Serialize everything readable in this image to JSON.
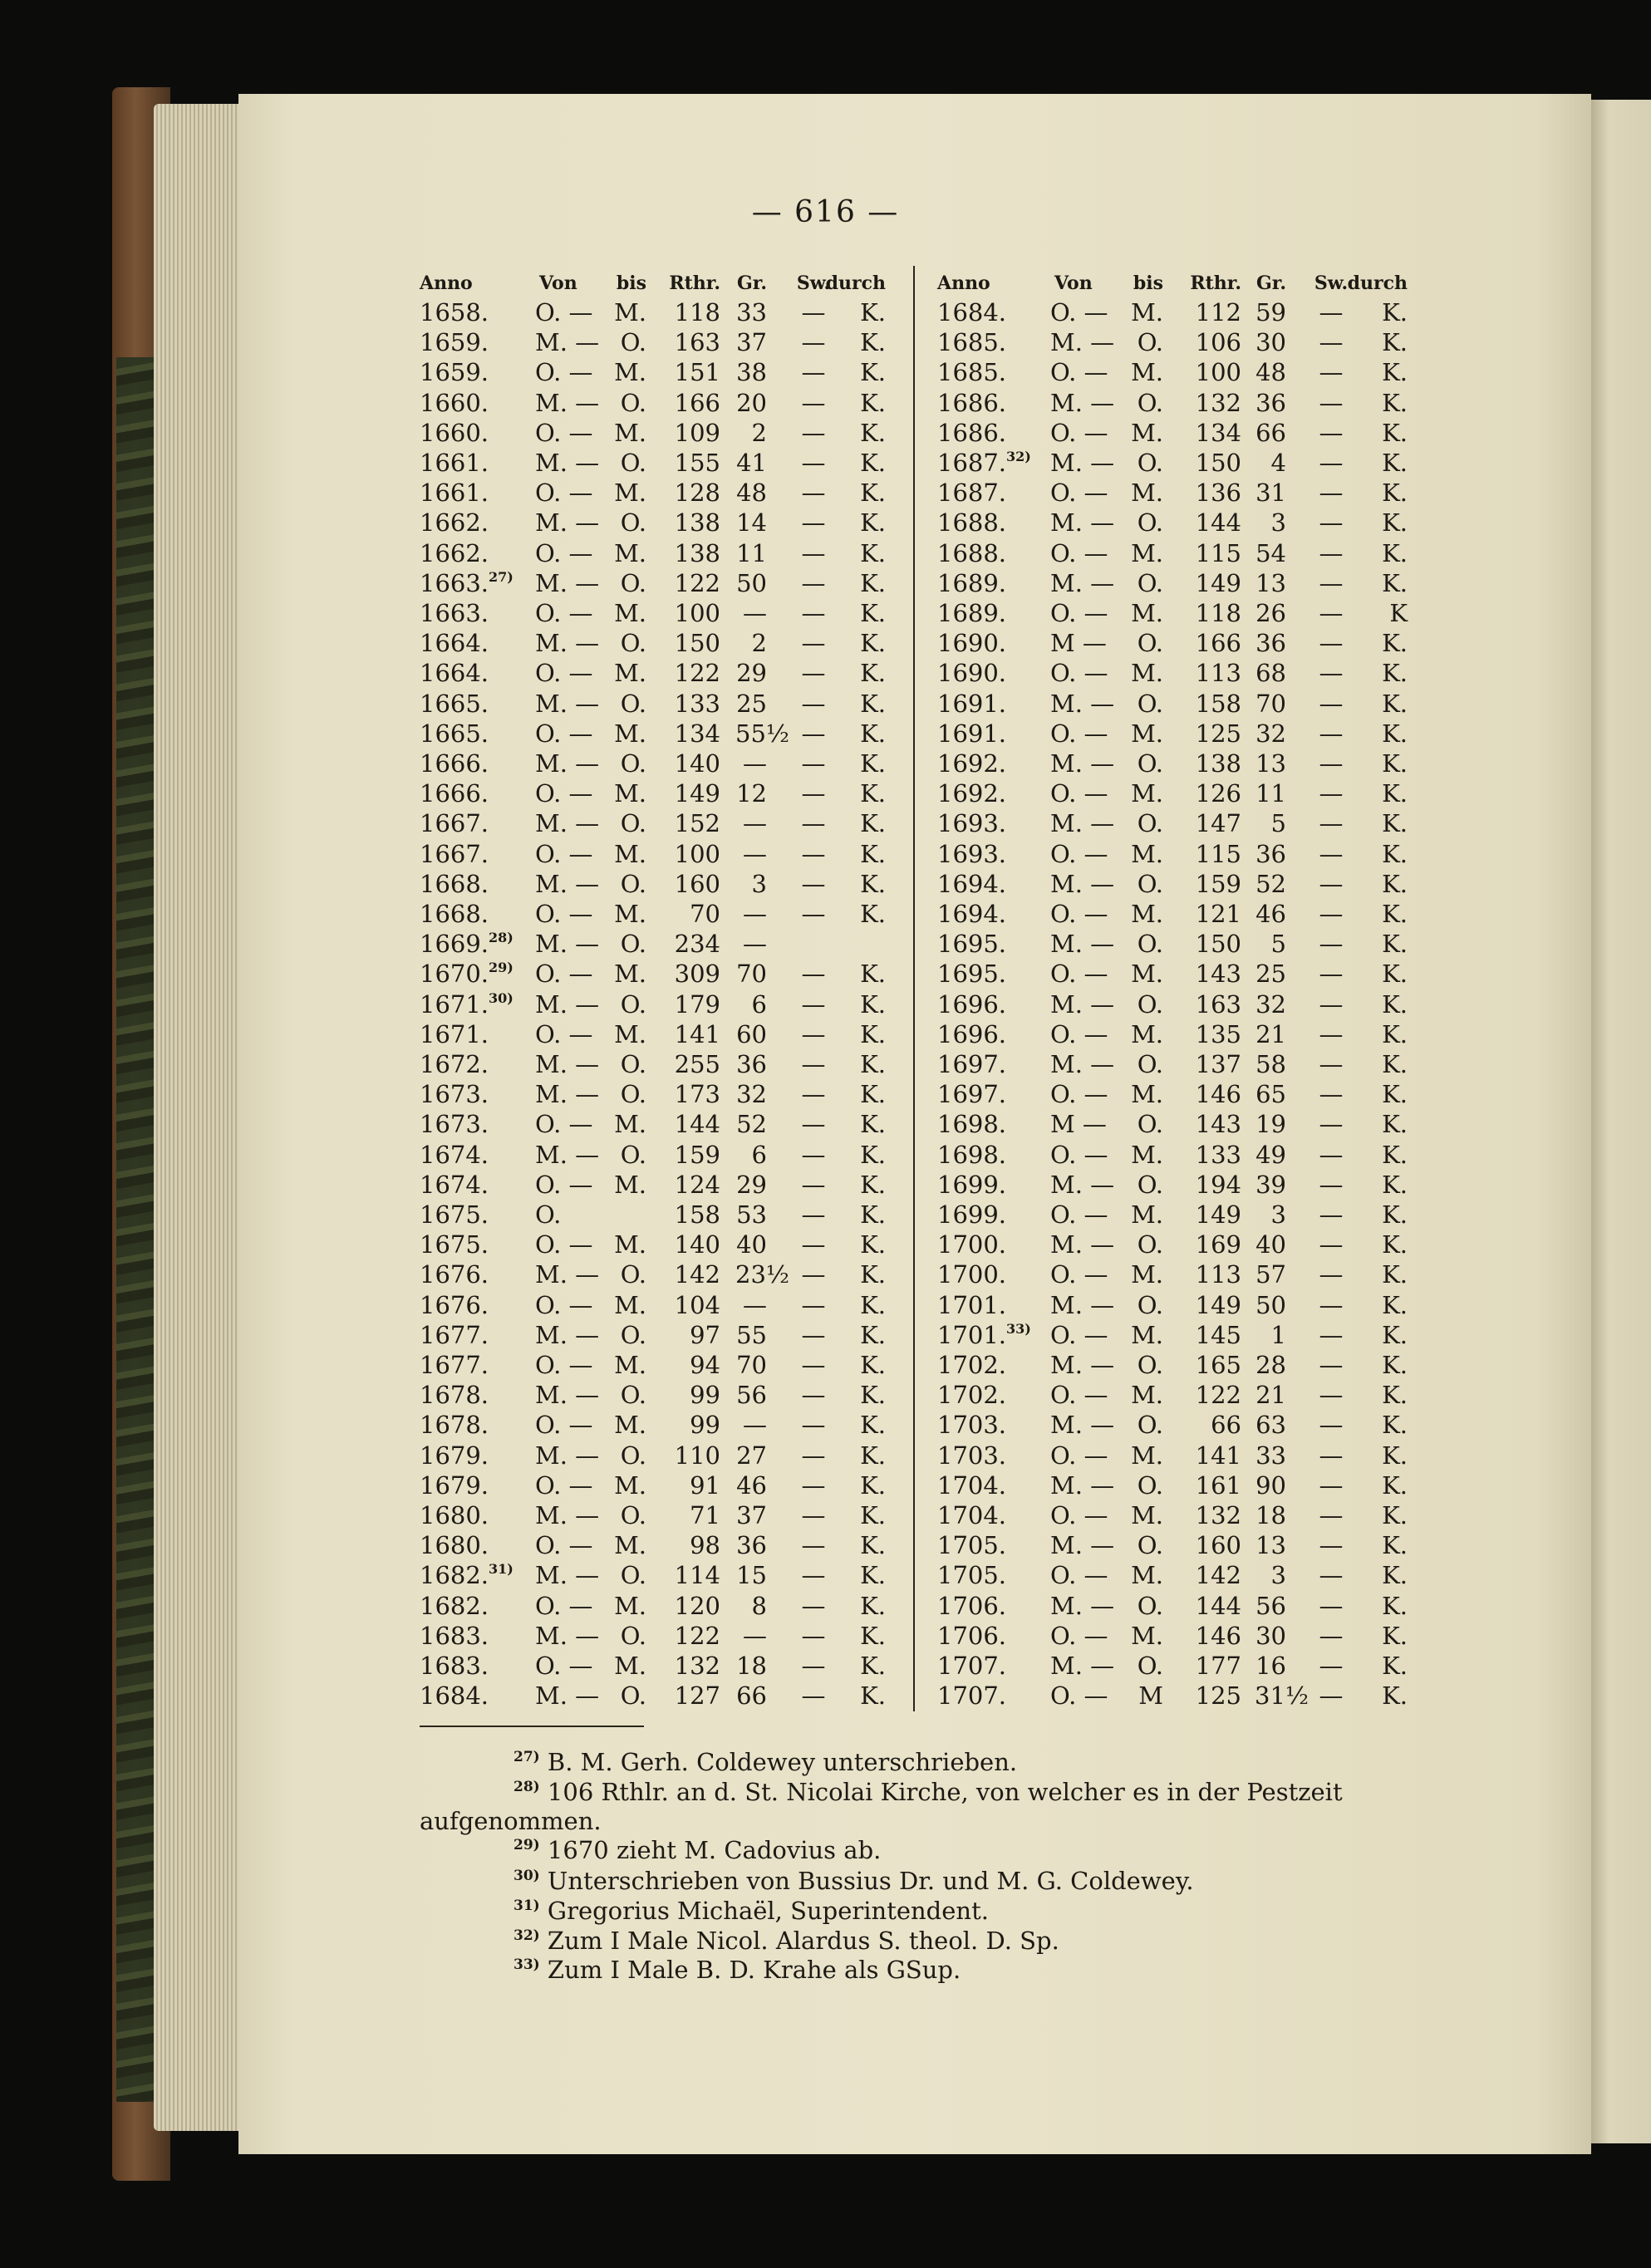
{
  "page_number": "— 616 —",
  "headers": {
    "anno": "Anno",
    "von": "Von",
    "bis": "bis",
    "rthr": "Rthr.",
    "gr": "Gr.",
    "sw": "Sw.",
    "durch": "durch"
  },
  "left_rows": [
    [
      "1658.",
      "",
      "O. —",
      "M.",
      "118",
      "33",
      "—",
      "K."
    ],
    [
      "1659.",
      "",
      "M. —",
      "O.",
      "163",
      "37",
      "—",
      "K."
    ],
    [
      "1659.",
      "",
      "O. —",
      "M.",
      "151",
      "38",
      "—",
      "K."
    ],
    [
      "1660.",
      "",
      "M. —",
      "O.",
      "166",
      "20",
      "—",
      "K."
    ],
    [
      "1660.",
      "",
      "O. —",
      "M.",
      "109",
      "2",
      "—",
      "K."
    ],
    [
      "1661.",
      "",
      "M. —",
      "O.",
      "155",
      "41",
      "—",
      "K."
    ],
    [
      "1661.",
      "",
      "O. —",
      "M.",
      "128",
      "48",
      "—",
      "K."
    ],
    [
      "1662.",
      "",
      "M. —",
      "O.",
      "138",
      "14",
      "—",
      "K."
    ],
    [
      "1662.",
      "",
      "O. —",
      "M.",
      "138",
      "11",
      "—",
      "K."
    ],
    [
      "1663.",
      "27)",
      "M. —",
      "O.",
      "122",
      "50",
      "—",
      "K."
    ],
    [
      "1663.",
      "",
      "O. —",
      "M.",
      "100",
      "—",
      "—",
      "K."
    ],
    [
      "1664.",
      "",
      "M. —",
      "O.",
      "150",
      "2",
      "—",
      "K."
    ],
    [
      "1664.",
      "",
      "O. —",
      "M.",
      "122",
      "29",
      "—",
      "K."
    ],
    [
      "1665.",
      "",
      "M. —",
      "O.",
      "133",
      "25",
      "—",
      "K."
    ],
    [
      "1665.",
      "",
      "O. —",
      "M.",
      "134",
      "55½",
      "—",
      "K."
    ],
    [
      "1666.",
      "",
      "M. —",
      "O.",
      "140",
      "—",
      "—",
      "K."
    ],
    [
      "1666.",
      "",
      "O. —",
      "M.",
      "149",
      "12",
      "—",
      "K."
    ],
    [
      "1667.",
      "",
      "M. —",
      "O.",
      "152",
      "—",
      "—",
      "K."
    ],
    [
      "1667.",
      "",
      "O. —",
      "M.",
      "100",
      "—",
      "—",
      "K."
    ],
    [
      "1668.",
      "",
      "M. —",
      "O.",
      "160",
      "3",
      "—",
      "K."
    ],
    [
      "1668.",
      "",
      "O. —",
      "M.",
      "70",
      "—",
      "—",
      "K."
    ],
    [
      "1669.",
      "28)",
      "M. —",
      "O.",
      "234",
      "—",
      "",
      ""
    ],
    [
      "1670.",
      "29)",
      "O. —",
      "M.",
      "309",
      "70",
      "—",
      "K."
    ],
    [
      "1671.",
      "30)",
      "M. —",
      "O.",
      "179",
      "6",
      "—",
      "K."
    ],
    [
      "1671.",
      "",
      "O. —",
      "M.",
      "141",
      "60",
      "—",
      "K."
    ],
    [
      "1672.",
      "",
      "M. —",
      "O.",
      "255",
      "36",
      "—",
      "K."
    ],
    [
      "1673.",
      "",
      "M. —",
      "O.",
      "173",
      "32",
      "—",
      "K."
    ],
    [
      "1673.",
      "",
      "O. —",
      "M.",
      "144",
      "52",
      "—",
      "K."
    ],
    [
      "1674.",
      "",
      "M. —",
      "O.",
      "159",
      "6",
      "—",
      "K."
    ],
    [
      "1674.",
      "",
      "O. —",
      "M.",
      "124",
      "29",
      "—",
      "K."
    ],
    [
      "1675.",
      "",
      "O.",
      "",
      "158",
      "53",
      "—",
      "K."
    ],
    [
      "1675.",
      "",
      "O. —",
      "M.",
      "140",
      "40",
      "—",
      "K."
    ],
    [
      "1676.",
      "",
      "M. —",
      "O.",
      "142",
      "23½",
      "—",
      "K."
    ],
    [
      "1676.",
      "",
      "O. —",
      "M.",
      "104",
      "—",
      "—",
      "K."
    ],
    [
      "1677.",
      "",
      "M. —",
      "O.",
      "97",
      "55",
      "—",
      "K."
    ],
    [
      "1677.",
      "",
      "O. —",
      "M.",
      "94",
      "70",
      "—",
      "K."
    ],
    [
      "1678.",
      "",
      "M. —",
      "O.",
      "99",
      "56",
      "—",
      "K."
    ],
    [
      "1678.",
      "",
      "O. —",
      "M.",
      "99",
      "—",
      "—",
      "K."
    ],
    [
      "1679.",
      "",
      "M. —",
      "O.",
      "110",
      "27",
      "—",
      "K."
    ],
    [
      "1679.",
      "",
      "O. —",
      "M.",
      "91",
      "46",
      "—",
      "K."
    ],
    [
      "1680.",
      "",
      "M. —",
      "O.",
      "71",
      "37",
      "—",
      "K."
    ],
    [
      "1680.",
      "",
      "O. —",
      "M.",
      "98",
      "36",
      "—",
      "K."
    ],
    [
      "1682.",
      "31)",
      "M. —",
      "O.",
      "114",
      "15",
      "—",
      "K."
    ],
    [
      "1682.",
      "",
      "O. —",
      "M.",
      "120",
      "8",
      "—",
      "K."
    ],
    [
      "1683.",
      "",
      "M. —",
      "O.",
      "122",
      "—",
      "—",
      "K."
    ],
    [
      "1683.",
      "",
      "O. —",
      "M.",
      "132",
      "18",
      "—",
      "K."
    ],
    [
      "1684.",
      "",
      "M. —",
      "O.",
      "127",
      "66",
      "—",
      "K."
    ]
  ],
  "right_rows": [
    [
      "1684.",
      "",
      "O. —",
      "M.",
      "112",
      "59",
      "—",
      "K."
    ],
    [
      "1685.",
      "",
      "M. —",
      "O.",
      "106",
      "30",
      "—",
      "K."
    ],
    [
      "1685.",
      "",
      "O. —",
      "M.",
      "100",
      "48",
      "—",
      "K."
    ],
    [
      "1686.",
      "",
      "M. —",
      "O.",
      "132",
      "36",
      "—",
      "K."
    ],
    [
      "1686.",
      "",
      "O. —",
      "M.",
      "134",
      "66",
      "—",
      "K."
    ],
    [
      "1687.",
      "32)",
      "M. —",
      "O.",
      "150",
      "4",
      "—",
      "K."
    ],
    [
      "1687.",
      "",
      "O. —",
      "M.",
      "136",
      "31",
      "—",
      "K."
    ],
    [
      "1688.",
      "",
      "M. —",
      "O.",
      "144",
      "3",
      "—",
      "K."
    ],
    [
      "1688.",
      "",
      "O. —",
      "M.",
      "115",
      "54",
      "—",
      "K."
    ],
    [
      "1689.",
      "",
      "M. —",
      "O.",
      "149",
      "13",
      "—",
      "K."
    ],
    [
      "1689.",
      "",
      "O. —",
      "M.",
      "118",
      "26",
      "—",
      "K"
    ],
    [
      "1690.",
      "",
      "M —",
      "O.",
      "166",
      "36",
      "—",
      "K."
    ],
    [
      "1690.",
      "",
      "O. —",
      "M.",
      "113",
      "68",
      "—",
      "K."
    ],
    [
      "1691.",
      "",
      "M. —",
      "O.",
      "158",
      "70",
      "—",
      "K."
    ],
    [
      "1691.",
      "",
      "O. —",
      "M.",
      "125",
      "32",
      "—",
      "K."
    ],
    [
      "1692.",
      "",
      "M. —",
      "O.",
      "138",
      "13",
      "—",
      "K."
    ],
    [
      "1692.",
      "",
      "O. —",
      "M.",
      "126",
      "11",
      "—",
      "K."
    ],
    [
      "1693.",
      "",
      "M. —",
      "O.",
      "147",
      "5",
      "—",
      "K."
    ],
    [
      "1693.",
      "",
      "O. —",
      "M.",
      "115",
      "36",
      "—",
      "K."
    ],
    [
      "1694.",
      "",
      "M. —",
      "O.",
      "159",
      "52",
      "—",
      "K."
    ],
    [
      "1694.",
      "",
      "O. —",
      "M.",
      "121",
      "46",
      "—",
      "K."
    ],
    [
      "1695.",
      "",
      "M. —",
      "O.",
      "150",
      "5",
      "—",
      "K."
    ],
    [
      "1695.",
      "",
      "O. —",
      "M.",
      "143",
      "25",
      "—",
      "K."
    ],
    [
      "1696.",
      "",
      "M. —",
      "O.",
      "163",
      "32",
      "—",
      "K."
    ],
    [
      "1696.",
      "",
      "O. —",
      "M.",
      "135",
      "21",
      "—",
      "K."
    ],
    [
      "1697.",
      "",
      "M. —",
      "O.",
      "137",
      "58",
      "—",
      "K."
    ],
    [
      "1697.",
      "",
      "O. —",
      "M.",
      "146",
      "65",
      "—",
      "K."
    ],
    [
      "1698.",
      "",
      "M —",
      "O.",
      "143",
      "19",
      "—",
      "K."
    ],
    [
      "1698.",
      "",
      "O. —",
      "M.",
      "133",
      "49",
      "—",
      "K."
    ],
    [
      "1699.",
      "",
      "M. —",
      "O.",
      "194",
      "39",
      "—",
      "K."
    ],
    [
      "1699.",
      "",
      "O. —",
      "M.",
      "149",
      "3",
      "—",
      "K."
    ],
    [
      "1700.",
      "",
      "M. —",
      "O.",
      "169",
      "40",
      "—",
      "K."
    ],
    [
      "1700.",
      "",
      "O. —",
      "M.",
      "113",
      "57",
      "—",
      "K."
    ],
    [
      "1701.",
      "",
      "M. —",
      "O.",
      "149",
      "50",
      "—",
      "K."
    ],
    [
      "1701.",
      "33)",
      "O. —",
      "M.",
      "145",
      "1",
      "—",
      "K."
    ],
    [
      "1702.",
      "",
      "M. —",
      "O.",
      "165",
      "28",
      "—",
      "K."
    ],
    [
      "1702.",
      "",
      "O. —",
      "M.",
      "122",
      "21",
      "—",
      "K."
    ],
    [
      "1703.",
      "",
      "M. —",
      "O.",
      "66",
      "63",
      "—",
      "K."
    ],
    [
      "1703.",
      "",
      "O. —",
      "M.",
      "141",
      "33",
      "—",
      "K."
    ],
    [
      "1704.",
      "",
      "M. —",
      "O.",
      "161",
      "90",
      "—",
      "K."
    ],
    [
      "1704.",
      "",
      "O. —",
      "M.",
      "132",
      "18",
      "—",
      "K."
    ],
    [
      "1705.",
      "",
      "M. —",
      "O.",
      "160",
      "13",
      "—",
      "K."
    ],
    [
      "1705.",
      "",
      "O. —",
      "M.",
      "142",
      "3",
      "—",
      "K."
    ],
    [
      "1706.",
      "",
      "M. —",
      "O.",
      "144",
      "56",
      "—",
      "K."
    ],
    [
      "1706.",
      "",
      "O. —",
      "M.",
      "146",
      "30",
      "—",
      "K."
    ],
    [
      "1707.",
      "",
      "M. —",
      "O.",
      "177",
      "16",
      "—",
      "K."
    ],
    [
      "1707.",
      "",
      "O. —",
      "M",
      "125",
      "31½",
      "—",
      "K."
    ]
  ],
  "footnotes": [
    {
      "num": "27)",
      "text": "B. M. Gerh. Coldewey unterschrieben."
    },
    {
      "num": "28)",
      "text": "106 Rthlr. an d. St. Nicolai Kirche, von welcher es in der Pestzeit"
    },
    {
      "num": "",
      "text": "aufgenommen."
    },
    {
      "num": "29)",
      "text": "1670 zieht M. Cadovius ab."
    },
    {
      "num": "30)",
      "text": "Unterschrieben von Bussius Dr. und M. G. Coldewey."
    },
    {
      "num": "31)",
      "text": "Gregorius Michaël, Superintendent."
    },
    {
      "num": "32)",
      "text": "Zum I Male Nicol. Alardus S. theol. D. Sp."
    },
    {
      "num": "33)",
      "text": "Zum I Male B. D. Krahe als GSup."
    }
  ]
}
